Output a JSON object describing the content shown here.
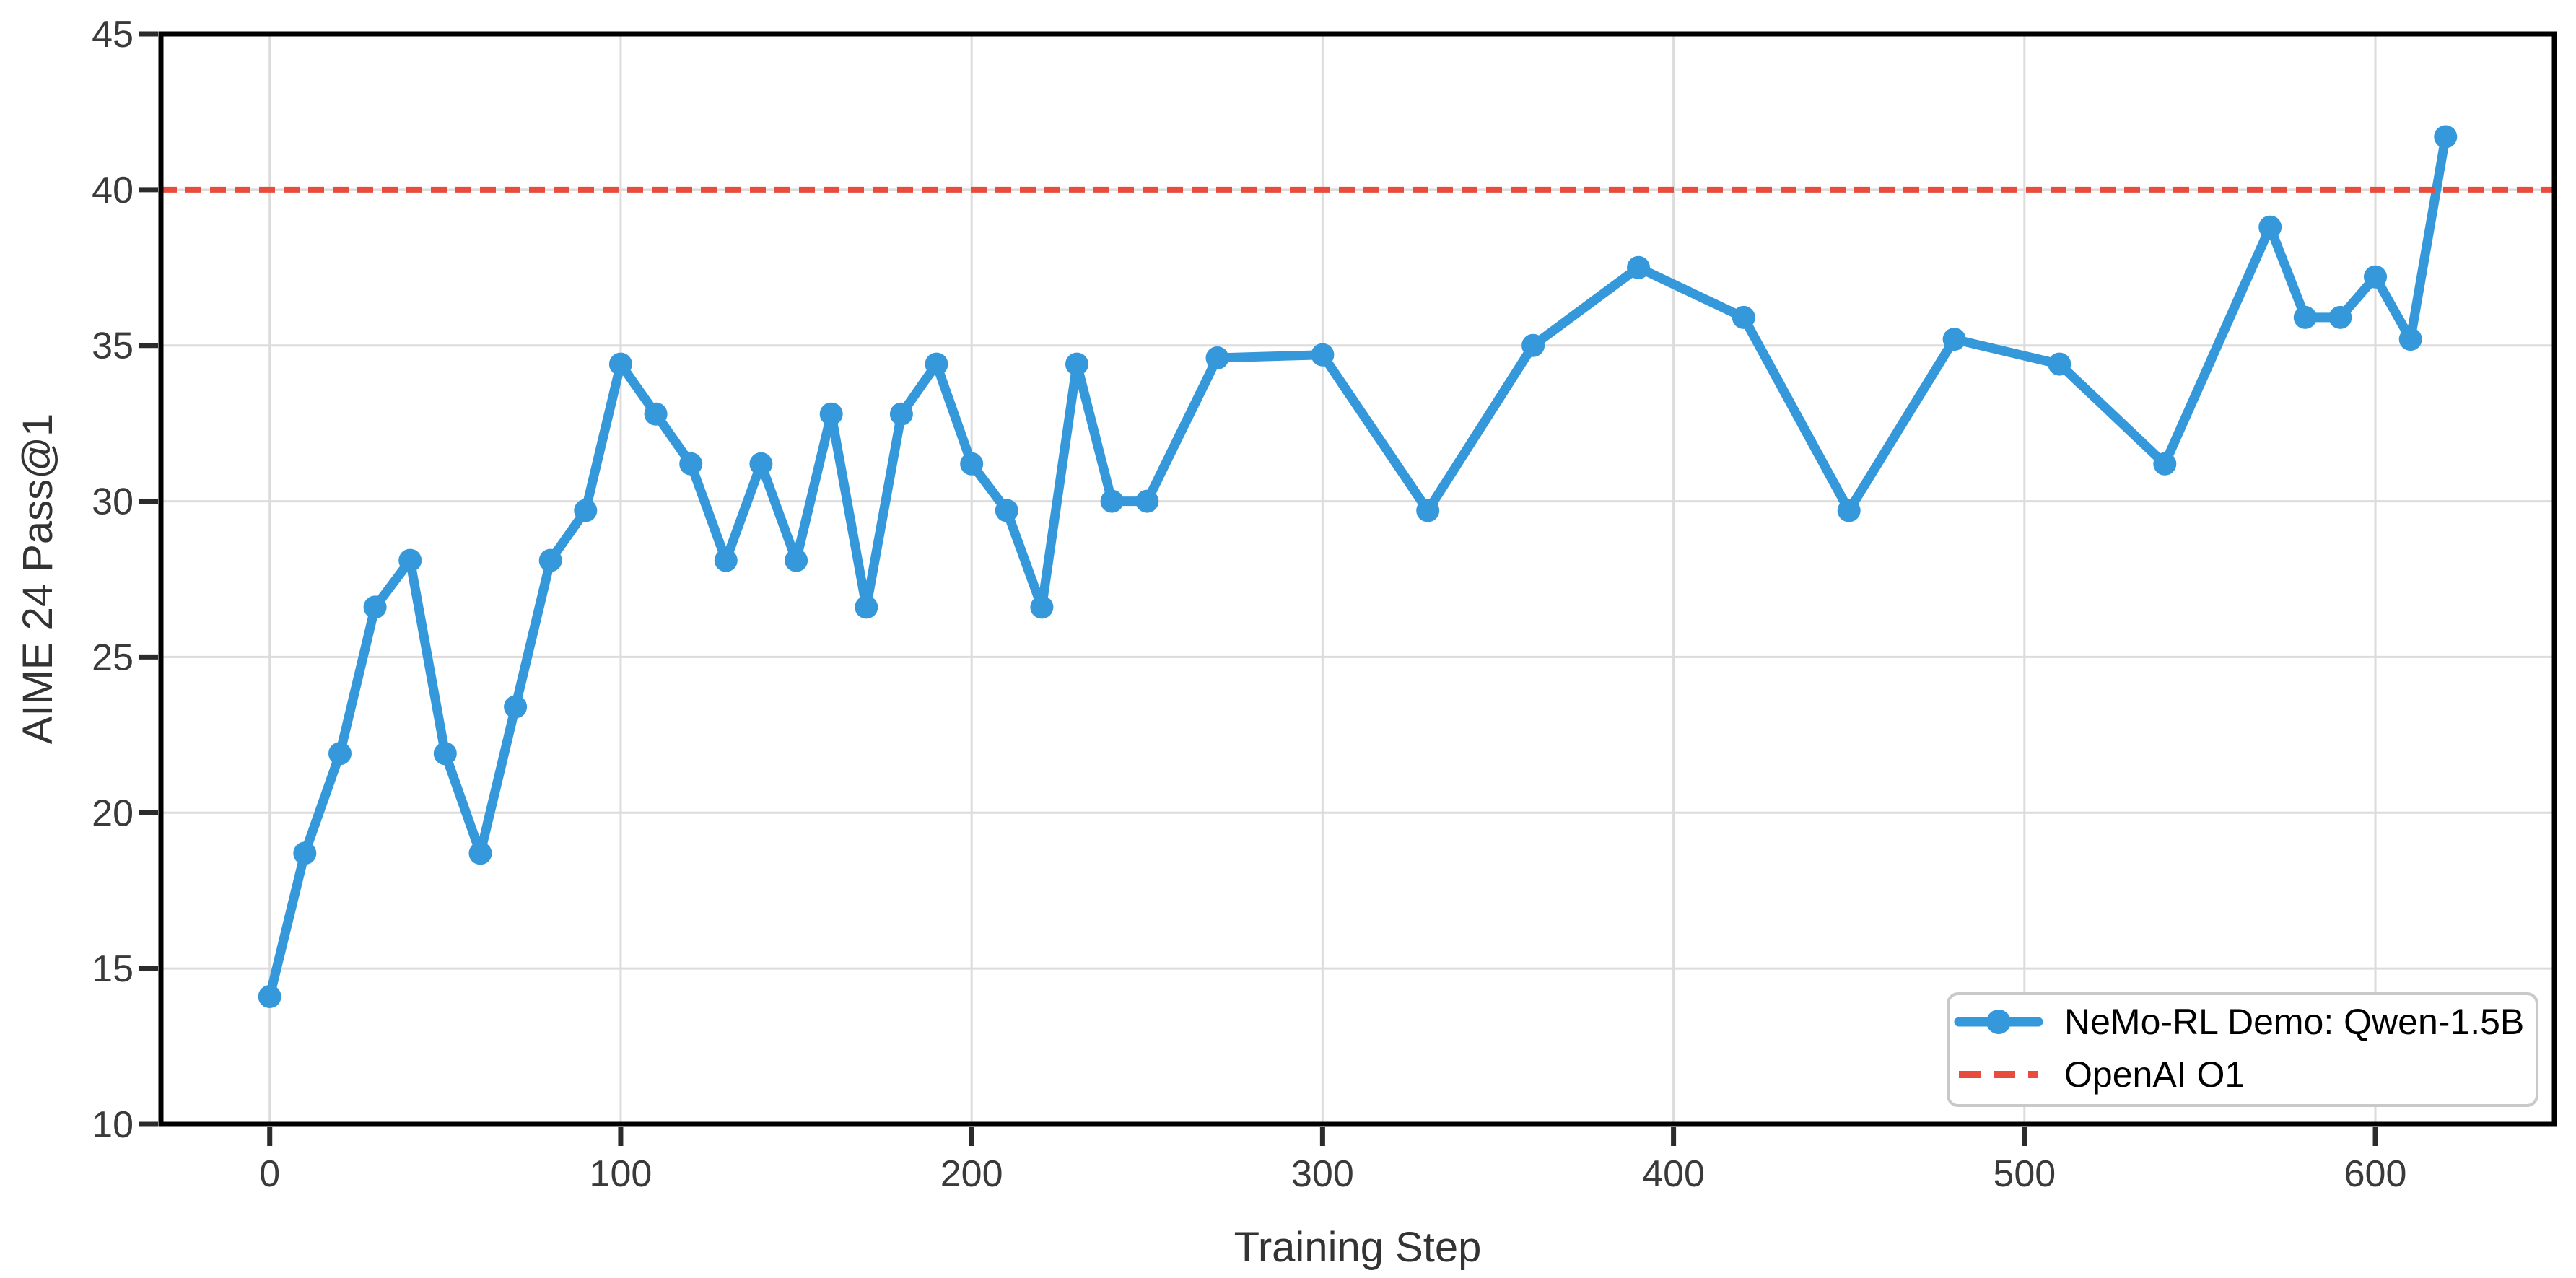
{
  "chart_data": {
    "type": "line",
    "title": "",
    "xlabel": "Training Step",
    "ylabel": "AIME 24 Pass@1",
    "xlim": [
      -31,
      651
    ],
    "ylim": [
      10,
      45
    ],
    "xticks": [
      0,
      100,
      200,
      300,
      400,
      500,
      600
    ],
    "yticks": [
      10,
      15,
      20,
      25,
      30,
      35,
      40,
      45
    ],
    "grid": true,
    "legend_position": "lower right",
    "series": [
      {
        "name": "NeMo-RL Demo: Qwen-1.5B",
        "type": "line+markers",
        "color": "#3498db",
        "x": [
          0,
          10,
          20,
          30,
          40,
          50,
          60,
          70,
          80,
          90,
          100,
          110,
          120,
          130,
          140,
          150,
          160,
          170,
          180,
          190,
          200,
          210,
          220,
          230,
          240,
          250,
          270,
          300,
          330,
          360,
          390,
          420,
          450,
          480,
          510,
          540,
          570,
          580,
          590,
          600,
          610,
          620
        ],
        "y": [
          14.1,
          18.7,
          21.9,
          26.6,
          28.1,
          21.9,
          18.7,
          23.4,
          28.1,
          29.7,
          34.4,
          32.8,
          31.2,
          28.1,
          31.2,
          28.1,
          32.8,
          26.6,
          32.8,
          34.4,
          31.2,
          29.7,
          26.6,
          34.4,
          30.0,
          30.0,
          34.6,
          34.7,
          29.7,
          35.0,
          37.5,
          35.9,
          29.7,
          35.2,
          34.4,
          31.2,
          38.8,
          35.9,
          35.9,
          37.2,
          35.2,
          41.7
        ]
      },
      {
        "name": "OpenAI O1",
        "type": "hline",
        "style": "dashed",
        "color": "#e74c3c",
        "y": 40
      }
    ],
    "colors": {
      "grid": "#dcdcdc",
      "spine": "#000000",
      "tick": "#2b2b2b",
      "tick_text": "#3a3a3a",
      "legend_border": "#c9c9c9",
      "background": "#ffffff"
    }
  }
}
